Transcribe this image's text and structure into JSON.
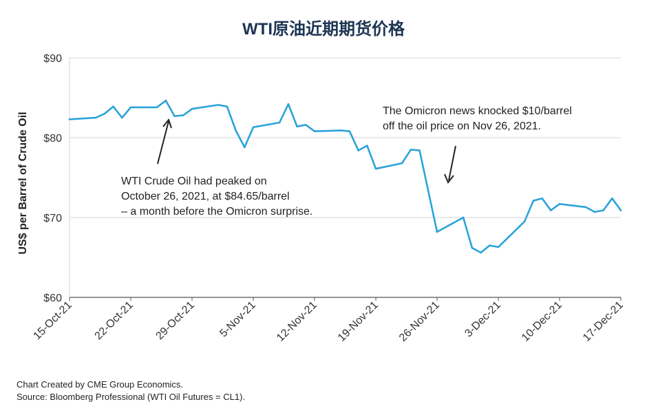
{
  "chart_data": {
    "type": "line",
    "title": "WTI原油近期期货价格",
    "ylabel": "US$ per Barrel of Crude Oil",
    "xlabel": "",
    "ylim": [
      60,
      90
    ],
    "yticks": [
      60,
      70,
      80,
      90
    ],
    "ytick_labels": [
      "$60",
      "$70",
      "$80",
      "$90"
    ],
    "grid": "horizontal",
    "x_range": [
      "2021-10-15",
      "2021-12-17"
    ],
    "xticks": [
      "2021-10-15",
      "2021-10-22",
      "2021-10-29",
      "2021-11-05",
      "2021-11-12",
      "2021-11-19",
      "2021-11-26",
      "2021-12-03",
      "2021-12-10",
      "2021-12-17"
    ],
    "xtick_labels": [
      "15-Oct-21",
      "22-Oct-21",
      "29-Oct-21",
      "5-Nov-21",
      "12-Nov-21",
      "19-Nov-21",
      "26-Nov-21",
      "3-Dec-21",
      "10-Dec-21",
      "17-Dec-21"
    ],
    "color": "#2aa3d8",
    "series": [
      {
        "x": [
          "2021-10-15",
          "2021-10-18",
          "2021-10-19",
          "2021-10-20",
          "2021-10-21",
          "2021-10-22",
          "2021-10-25",
          "2021-10-26",
          "2021-10-27",
          "2021-10-28",
          "2021-10-29",
          "2021-11-01",
          "2021-11-02",
          "2021-11-03",
          "2021-11-04",
          "2021-11-05",
          "2021-11-08",
          "2021-11-09",
          "2021-11-10",
          "2021-11-11",
          "2021-11-12",
          "2021-11-15",
          "2021-11-16",
          "2021-11-17",
          "2021-11-18",
          "2021-11-19",
          "2021-11-22",
          "2021-11-23",
          "2021-11-24",
          "2021-11-26",
          "2021-11-29",
          "2021-11-30",
          "2021-12-01",
          "2021-12-02",
          "2021-12-03",
          "2021-12-06",
          "2021-12-07",
          "2021-12-08",
          "2021-12-09",
          "2021-12-10",
          "2021-12-13",
          "2021-12-14",
          "2021-12-15",
          "2021-12-16",
          "2021-12-17"
        ],
        "y": [
          82.3,
          82.5,
          83.0,
          83.9,
          82.5,
          83.8,
          83.8,
          84.65,
          82.7,
          82.8,
          83.6,
          84.1,
          83.9,
          80.9,
          78.8,
          81.3,
          81.9,
          84.2,
          81.4,
          81.6,
          80.8,
          80.9,
          80.8,
          78.4,
          79.0,
          76.1,
          76.8,
          78.5,
          78.4,
          68.2,
          70.0,
          66.2,
          65.6,
          66.5,
          66.3,
          69.5,
          72.1,
          72.4,
          70.9,
          71.7,
          71.3,
          70.7,
          70.9,
          72.4,
          70.9
        ]
      }
    ],
    "annotations": [
      {
        "lines": [
          "WTI Crude Oil had peaked on",
          "October 26, 2021, at $84.65/barrel",
          "– a month before the Omicron surprise."
        ]
      },
      {
        "lines": [
          "The Omicron news knocked $10/barrel",
          "off the oil price on Nov 26, 2021."
        ]
      }
    ]
  },
  "footer": {
    "line1": "Chart Created by CME Group Economics.",
    "line2": "Source:  Bloomberg Professional (WTI Oil Futures = CL1)."
  }
}
